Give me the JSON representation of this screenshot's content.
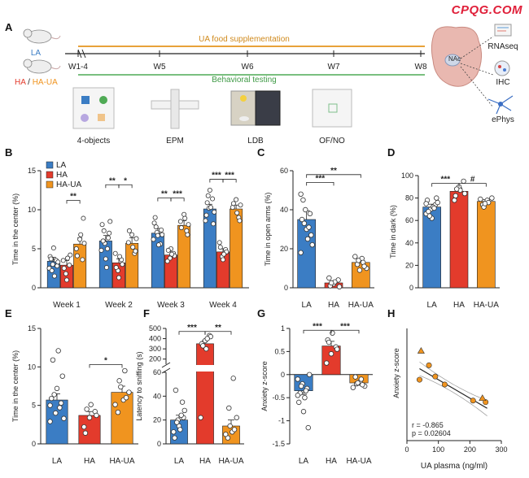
{
  "watermark": "CPQG.COM",
  "colors": {
    "LA": "#3b7dc4",
    "HA": "#e33b2c",
    "HA-UA": "#f0941f",
    "timeline_orange": "#e8a23a",
    "timeline_green": "#4faa55",
    "dot_fill": "#ffffff"
  },
  "panelA": {
    "letter": "A",
    "groups": {
      "la": "LA",
      "ha": "HA",
      "slash": " / ",
      "haua": "HA-UA"
    },
    "uaLabel": "UA food supplementation",
    "behLabel": "Behavioral testing",
    "weeks": [
      "W1-4",
      "W5",
      "W6",
      "W7",
      "W8"
    ],
    "tests": [
      "4-objects",
      "EPM",
      "LDB",
      "OF/NO"
    ],
    "nac": "NAc",
    "right": [
      "RNAseq",
      "IHC",
      "ePhys"
    ]
  },
  "chart_data": [
    {
      "id": "B",
      "type": "bar",
      "ylabel": "Time in the center (%)",
      "ylim": [
        0,
        15
      ],
      "yticks": [
        0,
        5,
        10,
        15
      ],
      "categories": [
        "Week 1",
        "Week 2",
        "Week 3",
        "Week 4"
      ],
      "legend": [
        "LA",
        "HA",
        "HA-UA"
      ],
      "series": [
        {
          "name": "LA",
          "values": [
            3.4,
            6.0,
            7.0,
            10.1
          ],
          "sem": [
            0.5,
            0.7,
            0.6,
            0.6
          ]
        },
        {
          "name": "HA",
          "values": [
            2.9,
            3.2,
            4.2,
            4.6
          ],
          "sem": [
            0.6,
            0.5,
            0.4,
            0.4
          ]
        },
        {
          "name": "HA-UA",
          "values": [
            5.6,
            5.7,
            8.0,
            10.1
          ],
          "sem": [
            0.8,
            0.7,
            0.6,
            0.5
          ]
        }
      ],
      "points": [
        [
          [
            2.5,
            3.0,
            3.5,
            4.0,
            5.1,
            2.8,
            3.7,
            1.5,
            3.3,
            2.2
          ],
          [
            1.8,
            2.9,
            3.5,
            1.0,
            4.2,
            2.5,
            3.8
          ],
          [
            3.6,
            5.0,
            6.2,
            8.9,
            4.1,
            6.8,
            5.7
          ]
        ],
        [
          [
            4.8,
            5.7,
            6.4,
            8.1,
            3.7,
            7.0,
            6.0,
            2.6,
            8.5,
            7.3,
            5.0
          ],
          [
            2.2,
            3.6,
            4.4,
            1.3,
            3.0,
            2.6,
            4.0
          ],
          [
            4.4,
            5.8,
            6.8,
            4.7,
            7.3,
            5.2,
            6.3
          ]
        ],
        [
          [
            6.2,
            7.1,
            5.6,
            8.3,
            6.7,
            7.4,
            9.0,
            5.5,
            6.8,
            7.8
          ],
          [
            3.8,
            4.4,
            3.4,
            5.0,
            4.1,
            4.8,
            4.3
          ],
          [
            7.3,
            8.5,
            9.4,
            6.8,
            7.7,
            8.9,
            8.1
          ]
        ],
        [
          [
            8.6,
            10.2,
            11.4,
            9.3,
            12.5,
            8.2,
            10.9,
            10.3,
            9.7,
            11.8
          ],
          [
            4.0,
            4.9,
            5.8,
            3.6,
            4.6,
            5.2,
            4.3
          ],
          [
            9.0,
            10.3,
            11.3,
            8.6,
            10.8,
            9.6,
            10.6
          ]
        ]
      ],
      "sig": [
        {
          "cat": 0,
          "from": 1,
          "to": 2,
          "y": 11.2,
          "label": "**"
        },
        {
          "cat": 1,
          "from": 0,
          "to": 1,
          "y": 13.2,
          "label": "**"
        },
        {
          "cat": 1,
          "from": 1,
          "to": 2,
          "y": 13.2,
          "label": "*"
        },
        {
          "cat": 2,
          "from": 0,
          "to": 1,
          "y": 11.5,
          "label": "**"
        },
        {
          "cat": 2,
          "from": 1,
          "to": 2,
          "y": 11.5,
          "label": "***"
        },
        {
          "cat": 3,
          "from": 0,
          "to": 1,
          "y": 13.9,
          "label": "***"
        },
        {
          "cat": 3,
          "from": 1,
          "to": 2,
          "y": 13.9,
          "label": "***"
        }
      ]
    },
    {
      "id": "C",
      "type": "bar",
      "ylabel": "Time in open arms (%)",
      "ylim": [
        0,
        60
      ],
      "yticks": [
        0,
        20,
        40,
        60
      ],
      "categories": [
        "LA",
        "HA",
        "HA-UA"
      ],
      "series": [
        {
          "name": "Time in open arms",
          "values": [
            35,
            2.5,
            13
          ],
          "sem": [
            4.5,
            1.0,
            1.5
          ]
        }
      ],
      "points": [
        [
          48,
          40,
          38,
          35,
          30,
          27,
          45,
          25,
          22,
          33,
          31,
          18
        ],
        [
          5,
          2,
          4,
          1,
          3,
          0.5,
          2.5
        ],
        [
          12,
          15,
          10,
          14,
          13,
          16,
          9,
          11
        ]
      ],
      "sig": [
        {
          "from": 0,
          "to": 1,
          "y": 54,
          "label": "***"
        },
        {
          "from": 0,
          "to": 2,
          "y": 58,
          "label": "**"
        }
      ]
    },
    {
      "id": "D",
      "type": "bar",
      "ylabel": "Time in dark (%)",
      "ylim": [
        0,
        100
      ],
      "yticks": [
        0,
        20,
        40,
        60,
        80,
        100
      ],
      "categories": [
        "LA",
        "HA",
        "HA-UA"
      ],
      "series": [
        {
          "name": "Time in dark",
          "values": [
            72,
            86,
            77
          ],
          "sem": [
            2.5,
            3.0,
            1.5
          ]
        }
      ],
      "points": [
        [
          66,
          70,
          74,
          78,
          62,
          80,
          68,
          72,
          76,
          64,
          71,
          75
        ],
        [
          78,
          90,
          95,
          82,
          87,
          84,
          88
        ],
        [
          74,
          78,
          80,
          72,
          76,
          79,
          75
        ]
      ],
      "sig": [
        {
          "from": 0,
          "to": 1,
          "y": 93,
          "label": "***"
        },
        {
          "from": 1,
          "to": 2,
          "y": 93,
          "label": "#"
        }
      ]
    },
    {
      "id": "E",
      "type": "bar",
      "ylabel": "Time in the center (%)",
      "ylim": [
        0,
        15
      ],
      "yticks": [
        0,
        5,
        10,
        15
      ],
      "categories": [
        "LA",
        "HA",
        "HA-UA"
      ],
      "series": [
        {
          "name": "Time in the center",
          "values": [
            5.7,
            3.7,
            6.7
          ],
          "sem": [
            0.8,
            0.5,
            0.8
          ]
        }
      ],
      "points": [
        [
          2.9,
          4.0,
          5.3,
          5.9,
          7.2,
          8.8,
          10.9,
          12.1,
          3.3,
          6.4,
          4.7,
          5.0
        ],
        [
          2.2,
          3.4,
          4.2,
          1.4,
          5.1,
          3.7,
          4.5
        ],
        [
          4.1,
          5.7,
          6.7,
          8.2,
          9.5,
          5.1,
          7.4,
          6.0
        ]
      ],
      "sig": [
        {
          "from": 1,
          "to": 2,
          "y": 10.3,
          "label": "*"
        }
      ]
    },
    {
      "id": "F",
      "type": "bar",
      "ylabel": "Latency to sniffing (s)",
      "lower": {
        "ylim": [
          0,
          60
        ],
        "yticks": [
          0,
          20,
          40,
          60
        ]
      },
      "upper": {
        "ylim": [
          150,
          500
        ],
        "yticks": [
          200,
          300,
          400,
          500
        ]
      },
      "categories": [
        "LA",
        "HA",
        "HA-UA"
      ],
      "series": [
        {
          "name": "Latency to sniffing",
          "values": [
            20,
            350,
            15
          ],
          "sem": [
            4,
            30,
            5
          ]
        }
      ],
      "points": [
        [
          10,
          20,
          35,
          5,
          15,
          22,
          45,
          12,
          28,
          18,
          24
        ],
        [
          22,
          380,
          430,
          350,
          300,
          420,
          330,
          400
        ],
        [
          5,
          10,
          22,
          30,
          55,
          8,
          15,
          12
        ]
      ],
      "sig": [
        {
          "from": 0,
          "to": 1,
          "yu": 470,
          "label": "***"
        },
        {
          "from": 1,
          "to": 2,
          "yu": 470,
          "label": "**"
        }
      ]
    },
    {
      "id": "G",
      "type": "bar",
      "ylabel": "Anxiety z-score",
      "ylim": [
        -1.5,
        1.0
      ],
      "yticks": [
        -1.5,
        -1.0,
        -0.5,
        0,
        0.5,
        1.0
      ],
      "categories": [
        "LA",
        "HA",
        "HA-UA"
      ],
      "series": [
        {
          "name": "Anxiety z-score",
          "values": [
            -0.35,
            0.62,
            -0.18
          ],
          "sem": [
            0.08,
            0.1,
            0.05
          ]
        }
      ],
      "points": [
        [
          -0.1,
          -0.2,
          -0.3,
          -0.6,
          -0.8,
          -1.15,
          -0.4,
          -0.5,
          0.0,
          -0.25,
          -0.35,
          -0.45
        ],
        [
          0.25,
          0.45,
          0.6,
          0.75,
          0.9,
          0.55,
          0.7
        ],
        [
          -0.05,
          -0.15,
          -0.25,
          -0.2,
          -0.1,
          -0.28,
          -0.18,
          -0.22
        ]
      ],
      "sig": [
        {
          "from": 0,
          "to": 1,
          "y": 0.96,
          "label": "***"
        },
        {
          "from": 1,
          "to": 2,
          "y": 0.96,
          "label": "***"
        }
      ]
    },
    {
      "id": "H",
      "type": "scatter",
      "xlabel": "UA plasma (ng/ml)",
      "ylabel": "Anxiety z-score",
      "xlim": [
        0,
        300
      ],
      "xticks": [
        0,
        100,
        200,
        300
      ],
      "ylim": [
        -0.8,
        0.6
      ],
      "circles": [
        [
          40,
          -0.04
        ],
        [
          70,
          0.14
        ],
        [
          90,
          0.0
        ],
        [
          120,
          -0.1
        ],
        [
          210,
          -0.3
        ],
        [
          250,
          -0.32
        ]
      ],
      "triangles": [
        [
          45,
          0.32
        ],
        [
          240,
          -0.27
        ]
      ],
      "fit": {
        "slope": -0.0023,
        "intercept": 0.19
      },
      "stats": [
        "r = -0.865",
        "p = 0.02604"
      ]
    }
  ]
}
